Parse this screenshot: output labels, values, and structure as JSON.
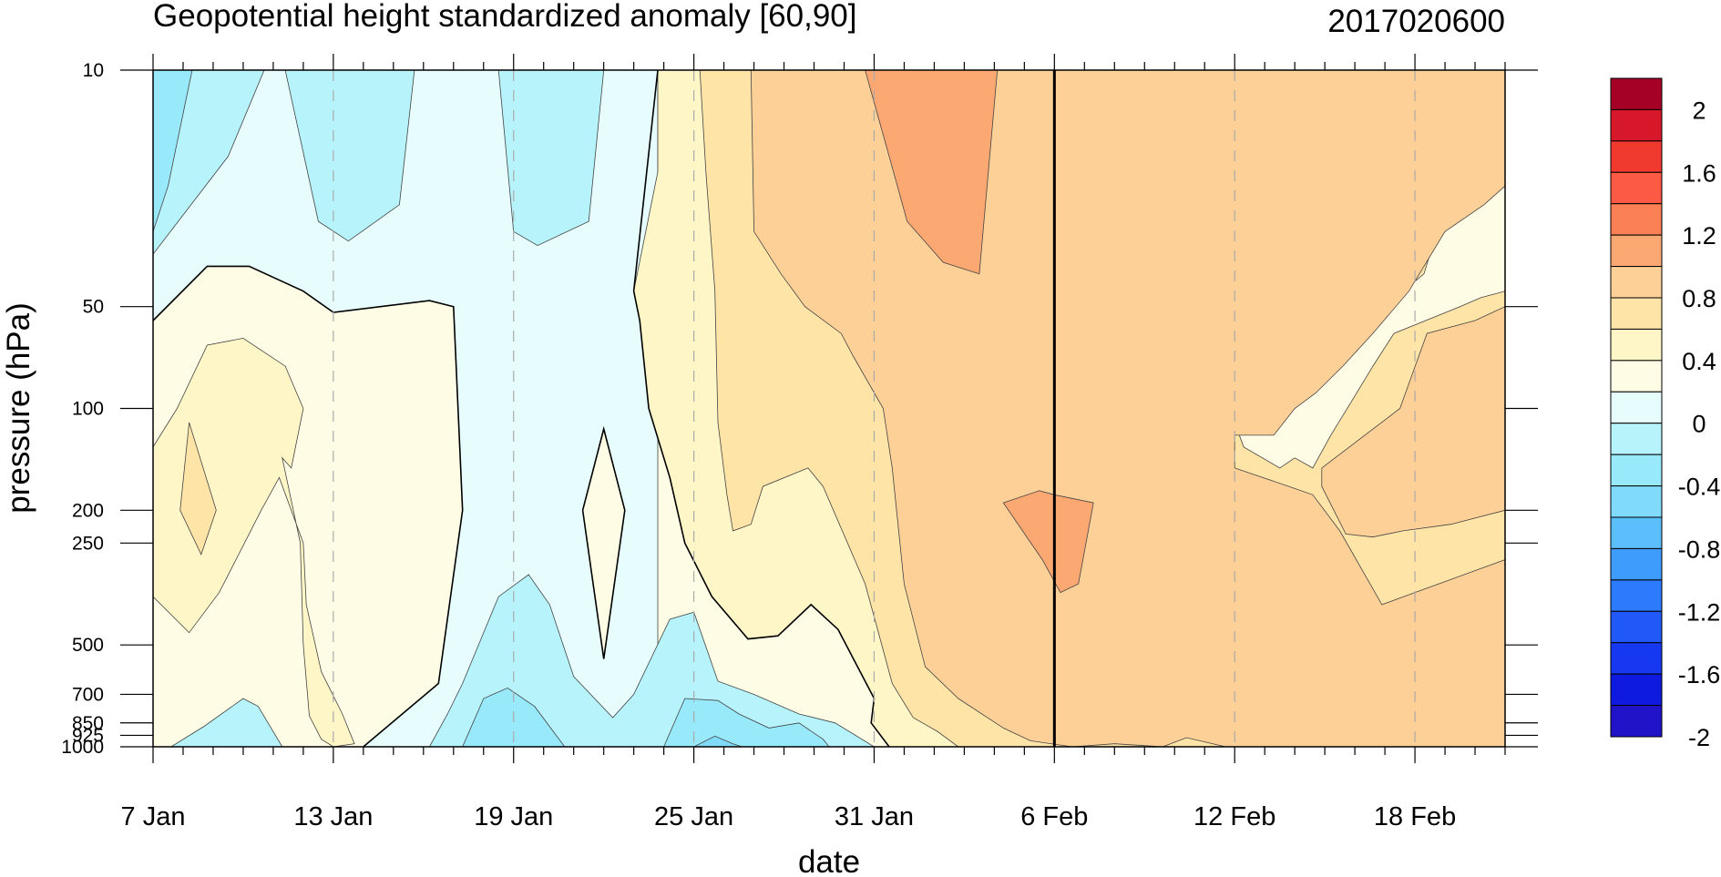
{
  "chart_data": {
    "type": "heatmap",
    "title": "Geopotential height standardized anomaly [60,90]",
    "timestamp": "2017020600",
    "xlabel": "date",
    "ylabel": "pressure (hPa)",
    "x_start": "7 Jan",
    "x_end_offset_days": 45,
    "x_ticks": [
      {
        "day": 0,
        "label": "7 Jan"
      },
      {
        "day": 6,
        "label": "13 Jan"
      },
      {
        "day": 12,
        "label": "19 Jan"
      },
      {
        "day": 18,
        "label": "25 Jan"
      },
      {
        "day": 24,
        "label": "31 Jan"
      },
      {
        "day": 30,
        "label": "6 Feb"
      },
      {
        "day": 36,
        "label": "12 Feb"
      },
      {
        "day": 42,
        "label": "18 Feb"
      }
    ],
    "y_scale": "log",
    "y_range": [
      1000,
      10
    ],
    "y_ticks": [
      {
        "p": 10,
        "label": "10"
      },
      {
        "p": 50,
        "label": "50"
      },
      {
        "p": 100,
        "label": "100"
      },
      {
        "p": 200,
        "label": "200"
      },
      {
        "p": 250,
        "label": "250"
      },
      {
        "p": 500,
        "label": "500"
      },
      {
        "p": 700,
        "label": "700"
      },
      {
        "p": 850,
        "label": "850"
      },
      {
        "p": 925,
        "label": "925"
      },
      {
        "p": 1000,
        "label": "1000"
      }
    ],
    "current_day": 30,
    "colorbar": {
      "levels": [
        "2",
        "1.6",
        "1.2",
        "0.8",
        "0.4",
        "0",
        "-0.4",
        "-0.8",
        "-1.2",
        "-1.6",
        "-2"
      ],
      "colors": [
        "#a50026",
        "#d7182a",
        "#f03a2f",
        "#fc5a44",
        "#fb8055",
        "#fca873",
        "#fdd097",
        "#fee4a6",
        "#fff6c7",
        "#fffce6",
        "#e6fcfd",
        "#b7f3fb",
        "#98e9fa",
        "#80dafa",
        "#5cbefc",
        "#3e9cfc",
        "#2c7bfd",
        "#2159f9",
        "#1538f0",
        "#0e1ae0",
        "#2114c8"
      ]
    },
    "fills": [
      {
        "color": "#fffce6",
        "points": [
          [
            0,
            10
          ],
          [
            45,
            10
          ],
          [
            45,
            1000
          ],
          [
            0,
            1000
          ]
        ]
      },
      {
        "color": "#e6fcfd",
        "points": [
          [
            0,
            10
          ],
          [
            16.8,
            10
          ],
          [
            16.8,
            1000
          ],
          [
            7,
            1000
          ],
          [
            9.5,
            650
          ],
          [
            10.3,
            200
          ],
          [
            10,
            50
          ],
          [
            9.2,
            48
          ],
          [
            6,
            52
          ],
          [
            5,
            45
          ],
          [
            3.2,
            38
          ],
          [
            1.8,
            38
          ],
          [
            0,
            55
          ]
        ]
      },
      {
        "color": "#b7f3fb",
        "points": [
          [
            0,
            10
          ],
          [
            3.7,
            10
          ],
          [
            2.5,
            18
          ],
          [
            0,
            35
          ]
        ]
      },
      {
        "color": "#98e9fa",
        "points": [
          [
            0,
            10
          ],
          [
            1.3,
            10
          ],
          [
            0.5,
            22
          ],
          [
            0,
            30
          ]
        ]
      },
      {
        "color": "#b7f3fb",
        "points": [
          [
            4.4,
            10
          ],
          [
            8.7,
            10
          ],
          [
            8.2,
            25
          ],
          [
            6.5,
            32
          ],
          [
            5.5,
            28
          ]
        ]
      },
      {
        "color": "#b7f3fb",
        "points": [
          [
            11.5,
            10
          ],
          [
            15,
            10
          ],
          [
            14.5,
            28
          ],
          [
            12.8,
            33
          ],
          [
            12,
            30
          ]
        ]
      },
      {
        "color": "#fffce6",
        "points": [
          [
            14.3,
            200
          ],
          [
            15,
            115
          ],
          [
            15.7,
            200
          ],
          [
            15,
            550
          ]
        ]
      },
      {
        "color": "#b7f3fb",
        "points": [
          [
            9.2,
            1000
          ],
          [
            9.8,
            800
          ],
          [
            10.3,
            650
          ],
          [
            11.5,
            360
          ],
          [
            12.5,
            310
          ],
          [
            13.2,
            380
          ],
          [
            14,
            620
          ],
          [
            15.3,
            820
          ],
          [
            16,
            700
          ],
          [
            17.2,
            420
          ],
          [
            18,
            400
          ],
          [
            18.8,
            640
          ],
          [
            20,
            700
          ],
          [
            21.5,
            800
          ],
          [
            22.7,
            850
          ],
          [
            24,
            1000
          ]
        ]
      },
      {
        "color": "#98e9fa",
        "points": [
          [
            10.3,
            1000
          ],
          [
            11,
            720
          ],
          [
            11.8,
            670
          ],
          [
            12.7,
            760
          ],
          [
            13.7,
            1000
          ]
        ]
      },
      {
        "color": "#98e9fa",
        "points": [
          [
            17,
            1000
          ],
          [
            17.7,
            720
          ],
          [
            18.8,
            730
          ],
          [
            19.5,
            800
          ],
          [
            20.5,
            880
          ],
          [
            21.5,
            850
          ],
          [
            22.3,
            950
          ],
          [
            22.5,
            1000
          ]
        ]
      },
      {
        "color": "#80dafa",
        "points": [
          [
            18,
            1000
          ],
          [
            18.7,
            930
          ],
          [
            19.3,
            980
          ],
          [
            19.6,
            1000
          ]
        ]
      },
      {
        "color": "#b7f3fb",
        "points": [
          [
            0.6,
            1000
          ],
          [
            1.7,
            870
          ],
          [
            3,
            720
          ],
          [
            3.5,
            760
          ],
          [
            4.3,
            1000
          ]
        ]
      },
      {
        "color": "#fff6c7",
        "points": [
          [
            0,
            130
          ],
          [
            0.8,
            100
          ],
          [
            1.8,
            65
          ],
          [
            3,
            62
          ],
          [
            4.4,
            75
          ],
          [
            5,
            100
          ],
          [
            4.6,
            150
          ],
          [
            4.3,
            140
          ],
          [
            4.9,
            250
          ],
          [
            5,
            500
          ],
          [
            5.2,
            810
          ],
          [
            5.6,
            950
          ],
          [
            6,
            1000
          ],
          [
            6.7,
            980
          ],
          [
            6.3,
            800
          ],
          [
            5.6,
            600
          ],
          [
            5.1,
            380
          ],
          [
            5,
            250
          ],
          [
            4.2,
            160
          ],
          [
            3.6,
            200
          ],
          [
            2.2,
            350
          ],
          [
            1.2,
            460
          ],
          [
            0,
            360
          ]
        ]
      },
      {
        "color": "#fee4a6",
        "points": [
          [
            1.2,
            110
          ],
          [
            2.1,
            200
          ],
          [
            1.6,
            270
          ],
          [
            0.9,
            200
          ]
        ]
      },
      {
        "color": "#fff6c7",
        "points": [
          [
            16.8,
            10
          ],
          [
            45,
            10
          ],
          [
            45,
            1000
          ],
          [
            24.5,
            1000
          ],
          [
            23.9,
            850
          ],
          [
            24,
            720
          ],
          [
            22.8,
            450
          ],
          [
            21.9,
            380
          ],
          [
            20.8,
            470
          ],
          [
            19.8,
            480
          ],
          [
            18.6,
            360
          ],
          [
            17.7,
            250
          ],
          [
            17.2,
            160
          ],
          [
            16.5,
            100
          ],
          [
            16.2,
            55
          ],
          [
            16,
            45
          ],
          [
            16.8,
            20
          ]
        ]
      },
      {
        "color": "#fee4a6",
        "points": [
          [
            18.2,
            10
          ],
          [
            45,
            10
          ],
          [
            45,
            290
          ],
          [
            43.5,
            340
          ],
          [
            42.3,
            370
          ],
          [
            40.6,
            450
          ],
          [
            39.4,
            500
          ],
          [
            38.2,
            460
          ],
          [
            36.7,
            260
          ],
          [
            36,
            300
          ],
          [
            36,
            690
          ],
          [
            36.9,
            600
          ],
          [
            37.5,
            800
          ],
          [
            38.3,
            890
          ],
          [
            39.6,
            1000
          ],
          [
            26.8,
            1000
          ],
          [
            26.1,
            900
          ],
          [
            25.3,
            820
          ],
          [
            24.6,
            650
          ],
          [
            24.2,
            480
          ],
          [
            23.7,
            330
          ],
          [
            22.3,
            170
          ],
          [
            21.8,
            150
          ],
          [
            20.3,
            170
          ],
          [
            19.9,
            220
          ],
          [
            19.3,
            230
          ],
          [
            19.1,
            180
          ],
          [
            18.8,
            110
          ],
          [
            18.7,
            45
          ],
          [
            18.4,
            20
          ]
        ]
      },
      {
        "color": "#fffce6",
        "points": [
          [
            35.9,
            10
          ],
          [
            45,
            10
          ],
          [
            45,
            45
          ],
          [
            44.2,
            47
          ],
          [
            43.5,
            50
          ],
          [
            41.3,
            60
          ],
          [
            40.6,
            75
          ],
          [
            39.9,
            95
          ],
          [
            39.2,
            120
          ],
          [
            38.6,
            150
          ],
          [
            38,
            140
          ],
          [
            37.5,
            150
          ],
          [
            36.3,
            130
          ],
          [
            36,
            110
          ],
          [
            36.3,
            70
          ],
          [
            37.5,
            60
          ],
          [
            39.6,
            55
          ],
          [
            41,
            50
          ],
          [
            42.3,
            40
          ],
          [
            43,
            25
          ],
          [
            43.3,
            10
          ]
        ]
      },
      {
        "color": "#e6fcfd",
        "points": [
          [
            36.3,
            10
          ],
          [
            39.7,
            10
          ],
          [
            38.7,
            20
          ],
          [
            37.8,
            23
          ],
          [
            36.8,
            20
          ]
        ]
      },
      {
        "color": "#fdd097",
        "points": [
          [
            19.9,
            10
          ],
          [
            45,
            10
          ],
          [
            45,
            22
          ],
          [
            44.3,
            25
          ],
          [
            43,
            30
          ],
          [
            41.8,
            45
          ],
          [
            40.6,
            60
          ],
          [
            39.6,
            75
          ],
          [
            38.7,
            90
          ],
          [
            38,
            100
          ],
          [
            37.3,
            120
          ],
          [
            36,
            120
          ],
          [
            36,
            150
          ],
          [
            37.8,
            170
          ],
          [
            38.6,
            180
          ],
          [
            39.5,
            230
          ],
          [
            40.9,
            380
          ],
          [
            42,
            350
          ],
          [
            43.2,
            320
          ],
          [
            45,
            280
          ],
          [
            45,
            1000
          ],
          [
            36.7,
            1000
          ],
          [
            35.7,
            1000
          ],
          [
            34.4,
            940
          ],
          [
            33.6,
            1000
          ],
          [
            32,
            980
          ],
          [
            30.6,
            1000
          ],
          [
            29.2,
            960
          ],
          [
            28.3,
            880
          ],
          [
            26.8,
            720
          ],
          [
            25.7,
            580
          ],
          [
            25,
            330
          ],
          [
            24.6,
            150
          ],
          [
            24.3,
            100
          ],
          [
            23.3,
            70
          ],
          [
            22.9,
            60
          ],
          [
            21.7,
            50
          ],
          [
            20.9,
            40
          ],
          [
            20,
            30
          ]
        ]
      },
      {
        "color": "#fdd097",
        "points": [
          [
            38.9,
            150
          ],
          [
            41.5,
            100
          ],
          [
            42.4,
            60
          ],
          [
            44,
            55
          ],
          [
            45,
            50
          ],
          [
            45,
            200
          ],
          [
            43.2,
            220
          ],
          [
            41.6,
            230
          ],
          [
            40.6,
            240
          ],
          [
            39.7,
            235
          ],
          [
            38.9,
            170
          ]
        ]
      },
      {
        "color": "#fca873",
        "points": [
          [
            23.7,
            10
          ],
          [
            28.1,
            10
          ],
          [
            27.5,
            40
          ],
          [
            26.3,
            37
          ],
          [
            25.1,
            28
          ],
          [
            24.5,
            18
          ]
        ]
      },
      {
        "color": "#fca873",
        "points": [
          [
            28.3,
            190
          ],
          [
            29.5,
            175
          ],
          [
            30,
            180
          ],
          [
            31.3,
            190
          ],
          [
            30.8,
            330
          ],
          [
            30.2,
            350
          ],
          [
            29.6,
            280
          ]
        ]
      }
    ],
    "contours": [
      [
        [
          0,
          55
        ],
        [
          1.8,
          38
        ],
        [
          3.2,
          38
        ],
        [
          5,
          45
        ],
        [
          6,
          52
        ],
        [
          9.2,
          48
        ],
        [
          10,
          50
        ],
        [
          10.3,
          200
        ],
        [
          9.5,
          650
        ],
        [
          7,
          1000
        ]
      ],
      [
        [
          16.8,
          10
        ],
        [
          16,
          45
        ],
        [
          16.2,
          55
        ],
        [
          16.5,
          100
        ],
        [
          17.2,
          160
        ],
        [
          17.7,
          250
        ],
        [
          18.6,
          360
        ],
        [
          19.8,
          480
        ],
        [
          20.8,
          470
        ],
        [
          21.9,
          380
        ],
        [
          22.8,
          450
        ],
        [
          24,
          720
        ],
        [
          23.9,
          850
        ],
        [
          24.5,
          1000
        ]
      ],
      [
        [
          14.3,
          200
        ],
        [
          15,
          115
        ],
        [
          15.7,
          200
        ],
        [
          15,
          550
        ],
        [
          14.3,
          200
        ]
      ]
    ]
  }
}
